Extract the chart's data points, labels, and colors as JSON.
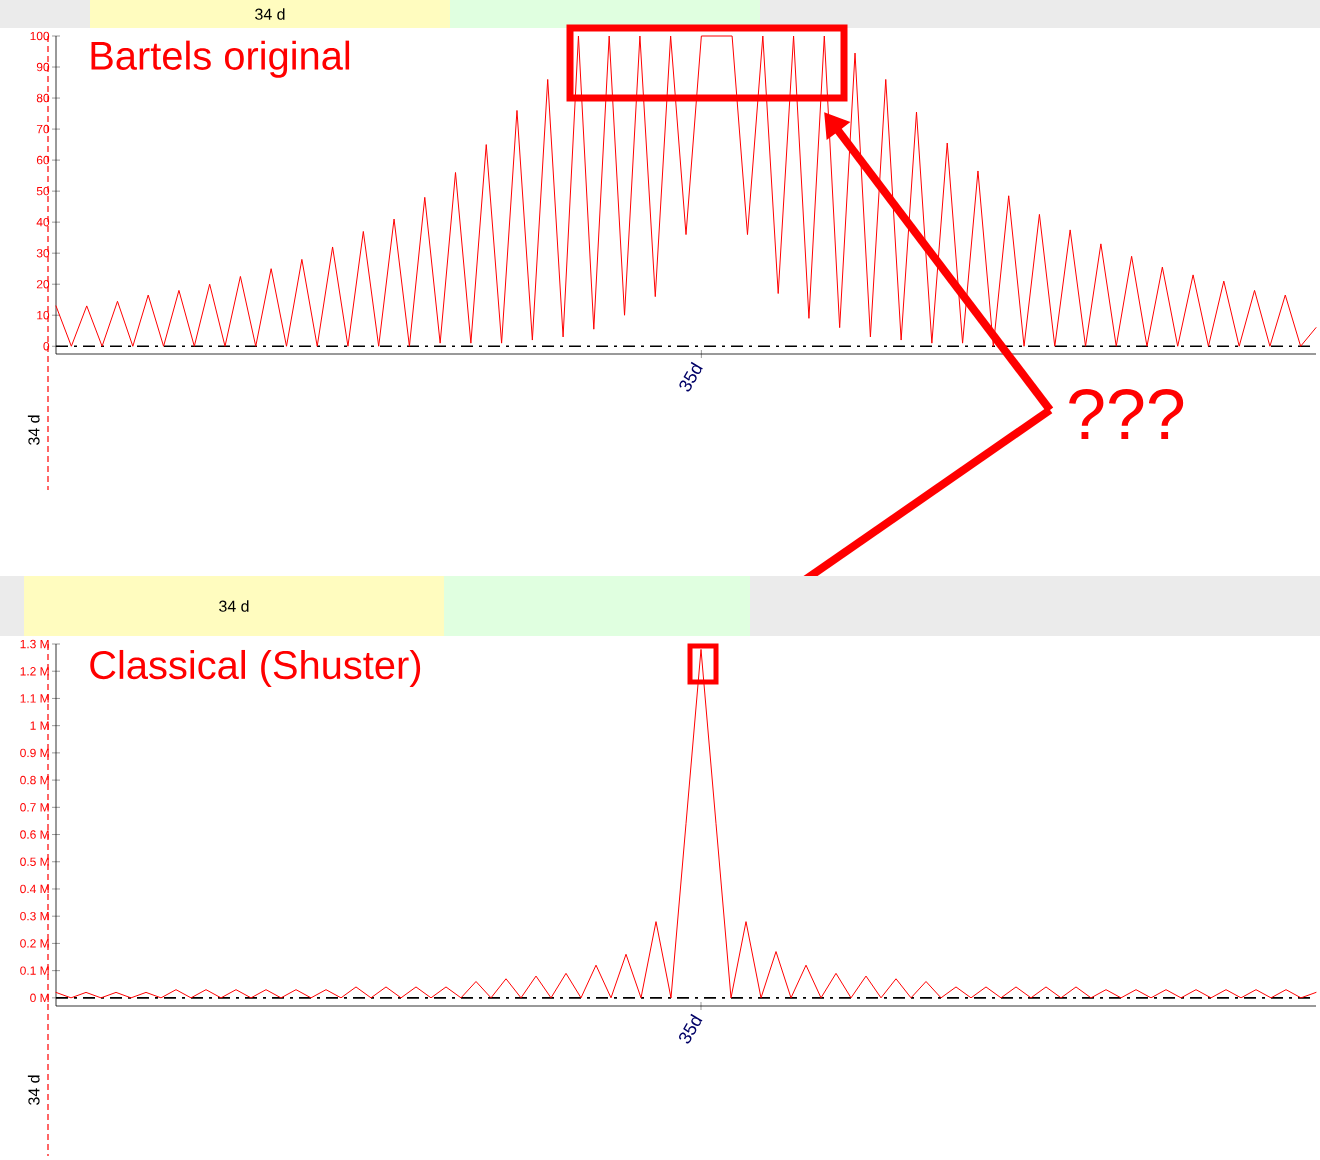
{
  "chart_data": [
    {
      "type": "line",
      "title": "Bartels original",
      "categories": [
        null,
        null,
        null,
        null,
        null,
        null,
        null,
        null,
        null,
        null,
        null,
        null,
        null,
        null,
        null,
        null,
        null,
        null,
        null,
        null,
        null,
        null,
        null,
        null,
        null,
        null,
        null,
        null,
        null,
        null,
        null,
        null,
        null,
        null,
        null,
        null,
        null,
        null,
        null,
        null,
        null,
        null,
        "35d",
        null,
        null,
        null,
        null,
        null,
        null,
        null,
        null,
        null,
        null,
        null,
        null,
        null,
        null,
        null,
        null,
        null,
        null,
        null,
        null,
        null,
        null,
        null,
        null,
        null,
        null,
        null,
        null,
        null,
        null,
        null,
        null,
        null,
        null,
        null,
        null,
        null,
        null,
        null,
        null
      ],
      "series": [
        {
          "color": "#ff0000",
          "values": [
            13,
            0,
            13,
            0,
            14.5,
            0,
            16.5,
            0,
            18,
            0,
            20,
            0,
            22.5,
            0,
            25,
            0,
            28,
            0,
            32,
            0,
            37,
            0,
            41,
            0,
            48,
            1,
            56,
            1,
            65,
            1,
            76,
            2,
            86,
            3,
            100,
            5.5,
            100,
            10,
            100,
            16,
            100,
            36,
            100,
            100,
            100,
            36,
            100,
            17,
            100,
            9,
            100,
            6,
            94.5,
            3,
            86,
            2,
            75.5,
            1,
            65.5,
            1,
            56.5,
            0,
            48.5,
            0,
            42.5,
            0,
            37.5,
            0,
            33,
            0,
            29,
            0,
            25.5,
            0,
            23,
            0,
            21,
            0,
            18,
            0,
            16.5,
            0,
            6
          ]
        }
      ],
      "ylim": [
        -2.5,
        100
      ],
      "yticks": [
        0,
        10,
        20,
        30,
        40,
        50,
        60,
        70,
        80,
        90,
        100
      ],
      "ref_lines": [
        {
          "axis": "y",
          "value": 0,
          "color": "#000000",
          "line_style": "dashed"
        }
      ],
      "annotations": [
        "34 d",
        "34 d",
        "???"
      ]
    },
    {
      "type": "line",
      "title": "Classical (Shuster)",
      "categories": [
        null,
        null,
        null,
        null,
        null,
        null,
        null,
        null,
        null,
        null,
        null,
        null,
        null,
        null,
        null,
        null,
        null,
        null,
        null,
        null,
        null,
        null,
        null,
        null,
        null,
        null,
        null,
        null,
        null,
        null,
        null,
        null,
        null,
        null,
        null,
        null,
        null,
        null,
        null,
        null,
        null,
        null,
        null,
        "35d",
        null,
        null,
        null,
        null,
        null,
        null,
        null,
        null,
        null,
        null,
        null,
        null,
        null,
        null,
        null,
        null,
        null,
        null,
        null,
        null,
        null,
        null,
        null,
        null,
        null,
        null,
        null,
        null,
        null,
        null,
        null,
        null,
        null,
        null,
        null,
        null,
        null,
        null,
        null,
        null,
        null
      ],
      "series": [
        {
          "color": "#ff0000",
          "values": [
            0.02,
            0,
            0.02,
            0,
            0.02,
            0,
            0.02,
            0,
            0.03,
            0,
            0.03,
            0,
            0.03,
            0,
            0.03,
            0,
            0.03,
            0,
            0.03,
            0,
            0.04,
            0,
            0.04,
            0,
            0.04,
            0,
            0.04,
            0,
            0.06,
            0,
            0.07,
            0,
            0.08,
            0,
            0.09,
            0,
            0.12,
            0,
            0.16,
            0,
            0.28,
            0,
            0.64,
            1.28,
            0.64,
            0,
            0.28,
            0,
            0.17,
            0,
            0.12,
            0,
            0.09,
            0,
            0.08,
            0,
            0.07,
            0,
            0.06,
            0,
            0.04,
            0,
            0.04,
            0,
            0.04,
            0,
            0.04,
            0,
            0.04,
            0,
            0.03,
            0,
            0.03,
            0,
            0.03,
            0,
            0.03,
            0,
            0.03,
            0,
            0.03,
            0,
            0.03,
            0,
            0.02
          ]
        }
      ],
      "ylim": [
        -0.03,
        1.3
      ],
      "yticks": [
        {
          "value": 0,
          "label": "0 M"
        },
        {
          "value": 0.1,
          "label": "0.1 M"
        },
        {
          "value": 0.2,
          "label": "0.2 M"
        },
        {
          "value": 0.3,
          "label": "0.3 M"
        },
        {
          "value": 0.4,
          "label": "0.4 M"
        },
        {
          "value": 0.5,
          "label": "0.5 M"
        },
        {
          "value": 0.6,
          "label": "0.6 M"
        },
        {
          "value": 0.7,
          "label": "0.7 M"
        },
        {
          "value": 0.8,
          "label": "0.8 M"
        },
        {
          "value": 0.9,
          "label": "0.9 M"
        },
        {
          "value": 1,
          "label": "1 M"
        },
        {
          "value": 1.1,
          "label": "1.1 M"
        },
        {
          "value": 1.2,
          "label": "1.2 M"
        },
        {
          "value": 1.3,
          "label": "1.3 M"
        }
      ],
      "ref_lines": [
        {
          "axis": "y",
          "value": 0,
          "color": "#000000",
          "line_style": "dashed"
        }
      ],
      "annotations": [
        "34 d",
        "34 d"
      ]
    }
  ]
}
